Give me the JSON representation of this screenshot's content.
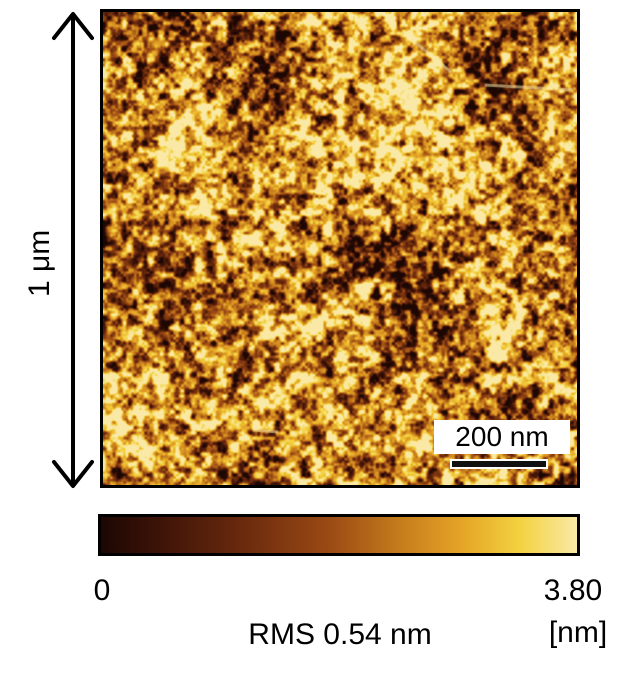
{
  "figure": {
    "size_label": "1 μm",
    "scale_bar_label": "200 nm",
    "colorbar": {
      "min_label": "0",
      "max_label": "3.80",
      "unit_label": "[nm]",
      "colors": [
        "#1c0703",
        "#3d1308",
        "#6a2a0d",
        "#9b4a14",
        "#c8801d",
        "#e5a527",
        "#f3d23f",
        "#fae9a6"
      ]
    },
    "rms_label": "RMS 0.54 nm"
  }
}
